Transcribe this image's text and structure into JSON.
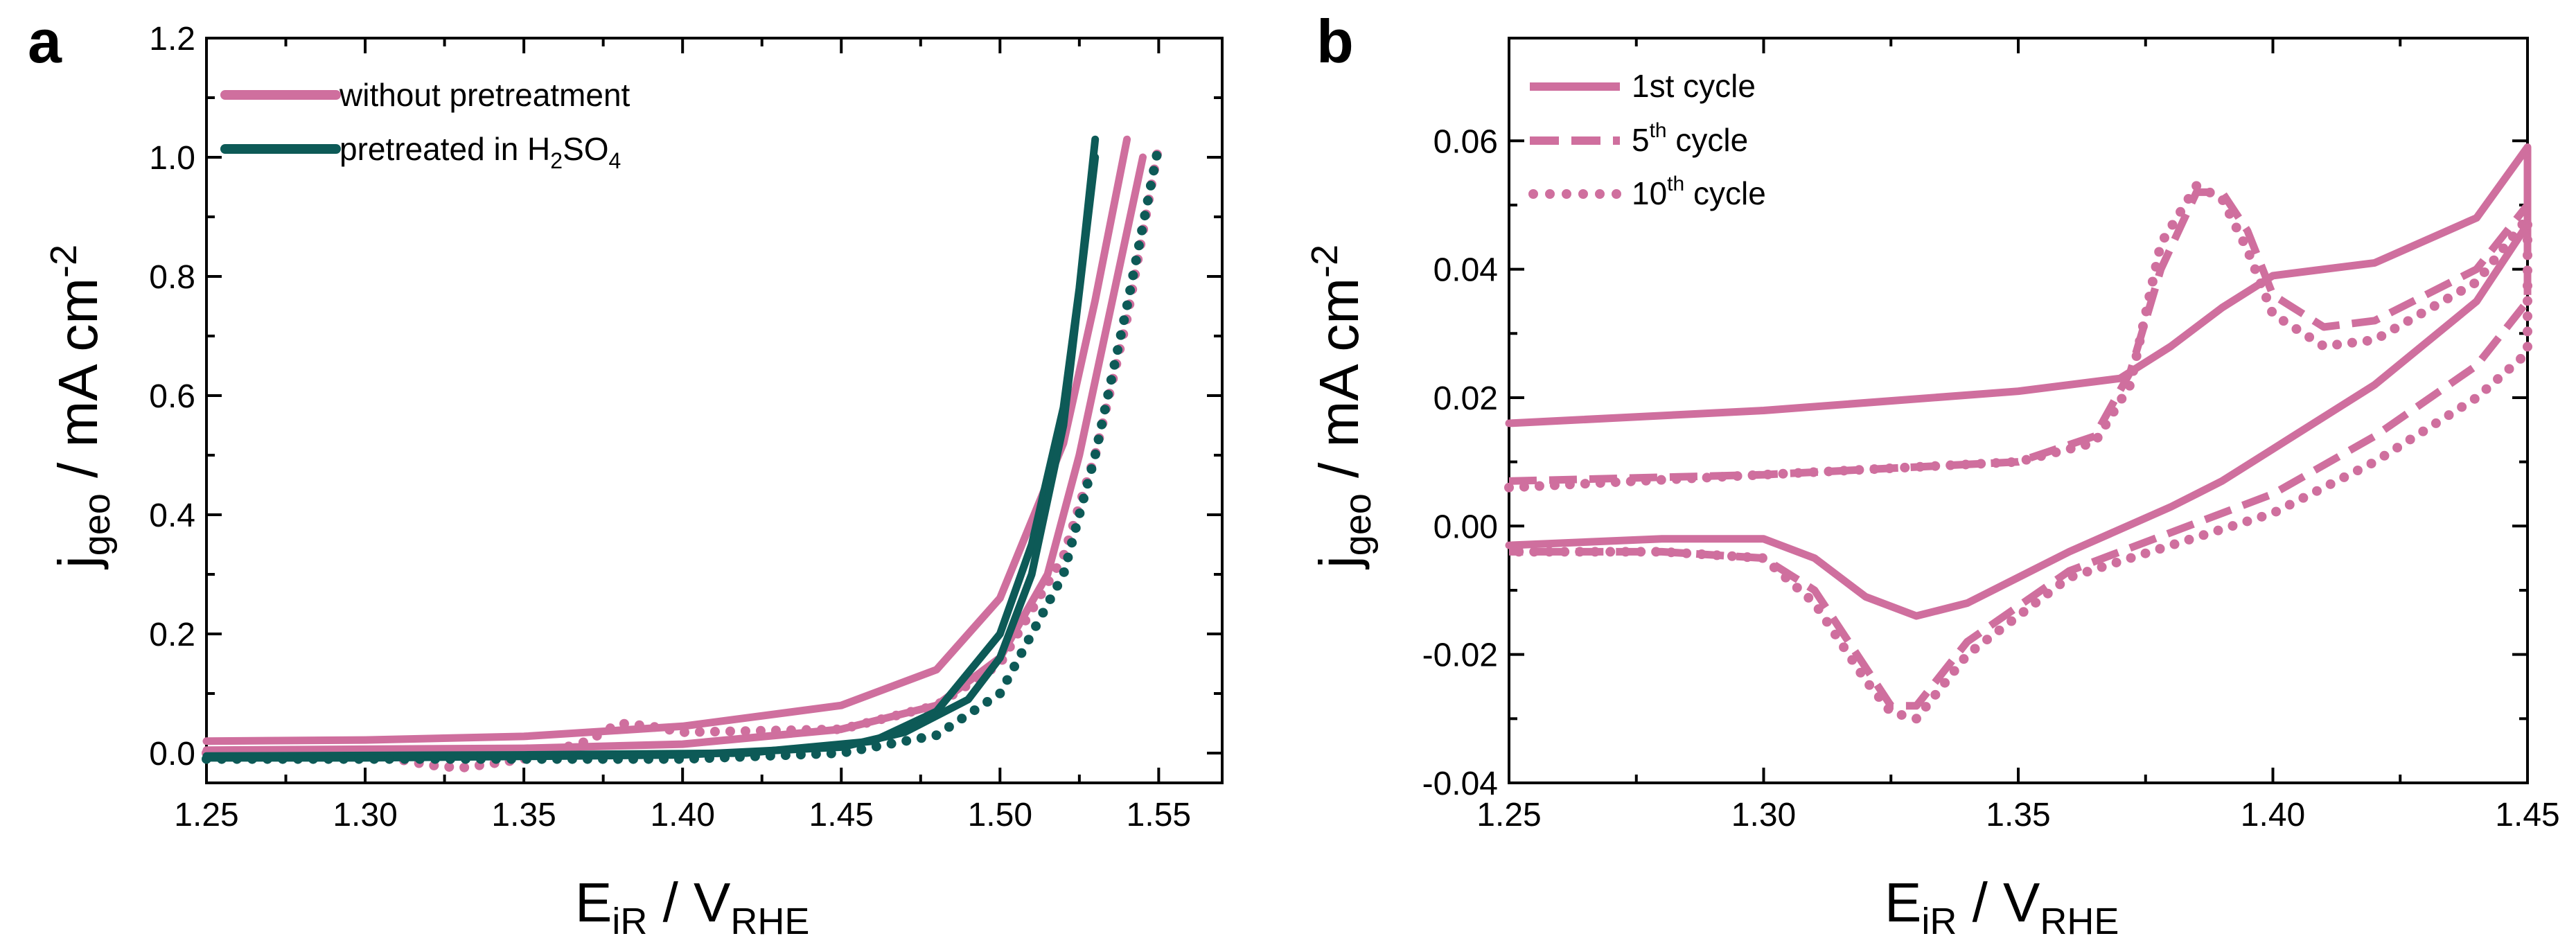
{
  "chart_data": [
    {
      "panel": "a",
      "type": "line",
      "xlabel": "E",
      "xlabel_sub": "iR",
      "xlabel_sep": " / V",
      "xlabel_sub2": "RHE",
      "ylabel": "j",
      "ylabel_sub": "geo",
      "ylabel_rest": " / mA cm",
      "ylabel_sup": "-2",
      "xlim": [
        1.25,
        1.57
      ],
      "ylim": [
        -0.05,
        1.2
      ],
      "xticks": [
        "1.25",
        "1.30",
        "1.35",
        "1.40",
        "1.45",
        "1.50",
        "1.55"
      ],
      "yticks": [
        "0.0",
        "0.2",
        "0.4",
        "0.6",
        "0.8",
        "1.0",
        "1.2"
      ],
      "legend": [
        {
          "label": "without pretreatment",
          "color": "#cf6f9e"
        },
        {
          "label_main": "pretreated in H",
          "label_sub1": "2",
          "label_mid": "SO",
          "label_sub2": "4",
          "color": "#0d5a57"
        }
      ],
      "series": [
        {
          "name": "without pretreatment (forward)",
          "color": "#cf6f9e",
          "style": "solid",
          "x": [
            1.25,
            1.3,
            1.35,
            1.4,
            1.45,
            1.48,
            1.5,
            1.52,
            1.53,
            1.54
          ],
          "y": [
            0.02,
            0.022,
            0.028,
            0.045,
            0.08,
            0.14,
            0.26,
            0.52,
            0.76,
            1.03
          ]
        },
        {
          "name": "without pretreatment (backward)",
          "color": "#cf6f9e",
          "style": "solid",
          "x": [
            1.545,
            1.535,
            1.525,
            1.515,
            1.5,
            1.48,
            1.45,
            1.4,
            1.35,
            1.25
          ],
          "y": [
            1.0,
            0.75,
            0.5,
            0.3,
            0.16,
            0.08,
            0.04,
            0.015,
            0.008,
            0.005
          ]
        },
        {
          "name": "without pretreatment (dotted)",
          "color": "#cf6f9e",
          "style": "dotted",
          "x": [
            1.25,
            1.3,
            1.32,
            1.33,
            1.35,
            1.37,
            1.38,
            1.39,
            1.4,
            1.45,
            1.48,
            1.5,
            1.52,
            1.53,
            1.54,
            1.55
          ],
          "y": [
            0.0,
            0.0,
            -0.02,
            -0.025,
            -0.01,
            0.02,
            0.05,
            0.045,
            0.035,
            0.04,
            0.08,
            0.15,
            0.33,
            0.5,
            0.73,
            1.02
          ]
        },
        {
          "name": "pretreated in H2SO4 (forward)",
          "color": "#0d5a57",
          "style": "solid",
          "x": [
            1.25,
            1.35,
            1.42,
            1.46,
            1.48,
            1.5,
            1.51,
            1.52,
            1.525,
            1.53
          ],
          "y": [
            -0.005,
            -0.003,
            0.0,
            0.02,
            0.07,
            0.2,
            0.35,
            0.58,
            0.78,
            1.03
          ]
        },
        {
          "name": "pretreated in H2SO4 (backward)",
          "color": "#0d5a57",
          "style": "solid",
          "x": [
            1.53,
            1.52,
            1.51,
            1.5,
            1.49,
            1.47,
            1.45,
            1.4,
            1.3,
            1.25
          ],
          "y": [
            1.0,
            0.55,
            0.3,
            0.16,
            0.09,
            0.035,
            0.01,
            -0.003,
            -0.008,
            -0.008
          ]
        },
        {
          "name": "pretreated in H2SO4 (dotted)",
          "color": "#0d5a57",
          "style": "dotted",
          "x": [
            1.25,
            1.4,
            1.45,
            1.48,
            1.5,
            1.52,
            1.53,
            1.54,
            1.55
          ],
          "y": [
            -0.01,
            -0.01,
            0.0,
            0.03,
            0.1,
            0.3,
            0.5,
            0.75,
            1.02
          ]
        }
      ]
    },
    {
      "panel": "b",
      "type": "line",
      "xlabel": "E",
      "xlabel_sub": "iR",
      "xlabel_sep": " / V",
      "xlabel_sub2": "RHE",
      "ylabel": "j",
      "ylabel_sub": "geo",
      "ylabel_rest": " / mA cm",
      "ylabel_sup": "-2",
      "xlim": [
        1.25,
        1.45
      ],
      "ylim": [
        -0.04,
        0.076
      ],
      "xticks": [
        "1.25",
        "1.30",
        "1.35",
        "1.40",
        "1.45"
      ],
      "yticks": [
        "-0.04",
        "-0.02",
        "0.00",
        "0.02",
        "0.04",
        "0.06"
      ],
      "legend": [
        {
          "label_main": "1st cycle",
          "style": "solid",
          "color": "#cf6f9e"
        },
        {
          "label_main": "5",
          "label_sup": "th",
          "label_rest": " cycle",
          "style": "dashed",
          "color": "#cf6f9e"
        },
        {
          "label_main": "10",
          "label_sup": "th",
          "label_rest": " cycle",
          "style": "dotted",
          "color": "#cf6f9e"
        }
      ],
      "series": [
        {
          "name": "1st cycle",
          "color": "#cf6f9e",
          "style": "solid",
          "x": [
            1.25,
            1.3,
            1.35,
            1.37,
            1.38,
            1.39,
            1.4,
            1.42,
            1.44,
            1.45,
            1.45,
            1.44,
            1.42,
            1.4,
            1.39,
            1.38,
            1.36,
            1.34,
            1.33,
            1.32,
            1.31,
            1.3,
            1.28,
            1.25
          ],
          "y": [
            0.016,
            0.018,
            0.021,
            0.023,
            0.028,
            0.034,
            0.039,
            0.041,
            0.048,
            0.059,
            0.047,
            0.035,
            0.022,
            0.012,
            0.007,
            0.003,
            -0.004,
            -0.012,
            -0.014,
            -0.011,
            -0.005,
            -0.002,
            -0.002,
            -0.003
          ]
        },
        {
          "name": "5th cycle",
          "color": "#cf6f9e",
          "style": "dashed",
          "x": [
            1.25,
            1.3,
            1.35,
            1.365,
            1.372,
            1.378,
            1.385,
            1.39,
            1.395,
            1.4,
            1.41,
            1.42,
            1.44,
            1.45,
            1.45,
            1.44,
            1.42,
            1.4,
            1.38,
            1.36,
            1.34,
            1.33,
            1.325,
            1.32,
            1.31,
            1.3,
            1.28,
            1.25
          ],
          "y": [
            0.007,
            0.008,
            0.01,
            0.014,
            0.024,
            0.04,
            0.052,
            0.052,
            0.046,
            0.036,
            0.031,
            0.032,
            0.04,
            0.05,
            0.035,
            0.025,
            0.014,
            0.005,
            -0.001,
            -0.007,
            -0.018,
            -0.028,
            -0.028,
            -0.022,
            -0.01,
            -0.005,
            -0.004,
            -0.004
          ]
        },
        {
          "name": "10th cycle",
          "color": "#cf6f9e",
          "style": "dotted",
          "x": [
            1.25,
            1.3,
            1.35,
            1.365,
            1.372,
            1.378,
            1.385,
            1.39,
            1.395,
            1.4,
            1.41,
            1.42,
            1.44,
            1.45,
            1.45,
            1.44,
            1.42,
            1.4,
            1.38,
            1.36,
            1.34,
            1.33,
            1.325,
            1.32,
            1.31,
            1.3,
            1.28,
            1.25
          ],
          "y": [
            0.006,
            0.008,
            0.01,
            0.013,
            0.022,
            0.044,
            0.053,
            0.051,
            0.043,
            0.033,
            0.028,
            0.029,
            0.038,
            0.048,
            0.027,
            0.02,
            0.01,
            0.002,
            -0.003,
            -0.008,
            -0.02,
            -0.03,
            -0.029,
            -0.024,
            -0.012,
            -0.005,
            -0.004,
            -0.004
          ]
        }
      ]
    }
  ]
}
